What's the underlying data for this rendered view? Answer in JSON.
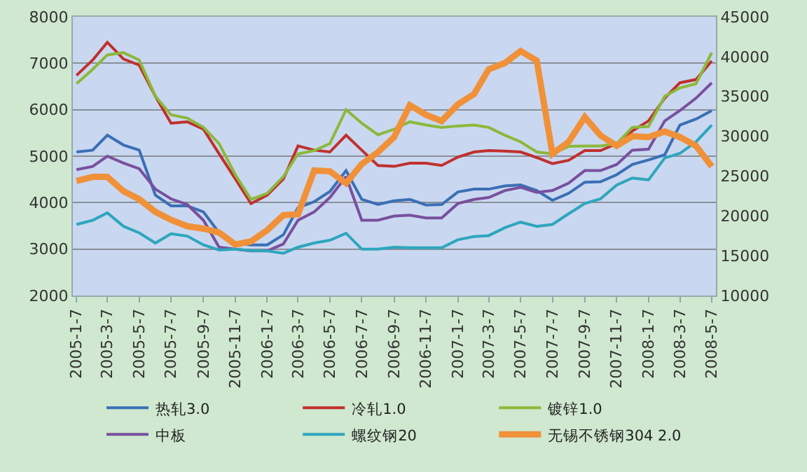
{
  "chart_data": {
    "type": "line",
    "x": [
      "2005-01-07",
      "2005-02-07",
      "2005-03-07",
      "2005-04-07",
      "2005-05-07",
      "2005-06-07",
      "2005-07-07",
      "2005-08-07",
      "2005-09-07",
      "2005-10-07",
      "2005-11-07",
      "2005-12-07",
      "2006-01-07",
      "2006-02-07",
      "2006-03-07",
      "2006-04-07",
      "2006-05-07",
      "2006-06-07",
      "2006-07-07",
      "2006-08-07",
      "2006-09-07",
      "2006-10-07",
      "2006-11-07",
      "2006-12-07",
      "2007-01-07",
      "2007-02-07",
      "2007-03-07",
      "2007-04-07",
      "2007-05-07",
      "2007-06-07",
      "2007-07-07",
      "2007-08-07",
      "2007-09-07",
      "2007-10-07",
      "2007-11-07",
      "2007-12-07",
      "2008-01-07",
      "2008-02-07",
      "2008-03-07",
      "2008-04-07",
      "2008-05-07"
    ],
    "series": [
      {
        "name": "热轧3.0",
        "color": "#3b6fb5",
        "values": [
          5090,
          5130,
          5450,
          5240,
          5130,
          4160,
          3930,
          3930,
          3800,
          3350,
          3130,
          3090,
          3090,
          3310,
          3890,
          4020,
          4240,
          4690,
          4070,
          3960,
          4040,
          4070,
          3950,
          3960,
          4230,
          4290,
          4290,
          4360,
          4380,
          4260,
          4050,
          4200,
          4440,
          4450,
          4600,
          4820,
          4920,
          5030,
          5670,
          5800,
          5980
        ]
      },
      {
        "name": "冷轧1.0",
        "color": "#c0302e",
        "values": [
          6740,
          7070,
          7450,
          7090,
          6960,
          6290,
          5710,
          5740,
          5580,
          5050,
          4510,
          3980,
          4160,
          4510,
          5220,
          5130,
          5090,
          5450,
          5130,
          4800,
          4780,
          4850,
          4850,
          4800,
          4980,
          5090,
          5120,
          5110,
          5090,
          4970,
          4840,
          4910,
          5120,
          5120,
          5270,
          5540,
          5760,
          6250,
          6580,
          6650,
          7050
        ]
      },
      {
        "name": "镀锌1.0",
        "color": "#8cb83a",
        "values": [
          6560,
          6870,
          7180,
          7230,
          7070,
          6290,
          5890,
          5820,
          5620,
          5270,
          4600,
          4070,
          4200,
          4560,
          5050,
          5120,
          5270,
          6000,
          5710,
          5460,
          5580,
          5740,
          5670,
          5620,
          5650,
          5670,
          5620,
          5450,
          5310,
          5090,
          5050,
          5210,
          5220,
          5220,
          5270,
          5620,
          5640,
          6290,
          6470,
          6560,
          7230
        ]
      },
      {
        "name": "中板",
        "color": "#7a4f9e",
        "values": [
          4710,
          4780,
          5000,
          4850,
          4730,
          4290,
          4080,
          3960,
          3620,
          3040,
          3000,
          2960,
          2960,
          3110,
          3620,
          3800,
          4110,
          4560,
          3620,
          3620,
          3710,
          3730,
          3670,
          3670,
          3980,
          4070,
          4110,
          4260,
          4330,
          4220,
          4260,
          4420,
          4690,
          4690,
          4820,
          5130,
          5150,
          5760,
          5980,
          6250,
          6580
        ]
      },
      {
        "name": "螺纹钢20",
        "color": "#2ea6bd",
        "values": [
          3530,
          3620,
          3780,
          3490,
          3350,
          3130,
          3330,
          3280,
          3090,
          2980,
          3000,
          2970,
          2960,
          2910,
          3040,
          3130,
          3190,
          3340,
          3000,
          3000,
          3040,
          3030,
          3030,
          3030,
          3200,
          3270,
          3290,
          3460,
          3580,
          3490,
          3530,
          3760,
          3980,
          4080,
          4380,
          4530,
          4490,
          4960,
          5060,
          5310,
          5670
        ]
      },
      {
        "name": "无锡不锈钢304 2.0",
        "color": "#f0913a",
        "axis": "y2",
        "values": [
          24400,
          24900,
          24900,
          23100,
          22100,
          20500,
          19500,
          18700,
          18400,
          17900,
          16400,
          16800,
          18200,
          20100,
          20200,
          25700,
          25600,
          24100,
          26500,
          28000,
          29900,
          33900,
          32700,
          31900,
          34000,
          35300,
          38400,
          39200,
          40700,
          39500,
          27800,
          29300,
          32400,
          30100,
          28800,
          30000,
          29900,
          30600,
          29900,
          28800,
          26200
        ]
      }
    ],
    "xlim": [
      "2004-12-31",
      "2008-05-15"
    ],
    "xticks": [
      {
        "value": "2005-01-07",
        "label": "2005-1-7"
      },
      {
        "value": "2005-03-07",
        "label": "2005-3-7"
      },
      {
        "value": "2005-05-07",
        "label": "2005-5-7"
      },
      {
        "value": "2005-07-07",
        "label": "2005-7-7"
      },
      {
        "value": "2005-09-07",
        "label": "2005-9-7"
      },
      {
        "value": "2005-11-07",
        "label": "2005-11-7"
      },
      {
        "value": "2006-01-07",
        "label": "2006-1-7"
      },
      {
        "value": "2006-03-07",
        "label": "2006-3-7"
      },
      {
        "value": "2006-05-07",
        "label": "2006-5-7"
      },
      {
        "value": "2006-07-07",
        "label": "2006-7-7"
      },
      {
        "value": "2006-09-07",
        "label": "2006-9-7"
      },
      {
        "value": "2006-11-07",
        "label": "2006-11-7"
      },
      {
        "value": "2007-01-07",
        "label": "2007-1-7"
      },
      {
        "value": "2007-03-07",
        "label": "2007-3-7"
      },
      {
        "value": "2007-05-07",
        "label": "2007-5-7"
      },
      {
        "value": "2007-07-07",
        "label": "2007-7-7"
      },
      {
        "value": "2007-09-07",
        "label": "2007-9-7"
      },
      {
        "value": "2007-11-07",
        "label": "2007-11-7"
      },
      {
        "value": "2008-01-07",
        "label": "2008-1-7"
      },
      {
        "value": "2008-03-07",
        "label": "2008-3-7"
      },
      {
        "value": "2008-05-07",
        "label": "2008-5-7"
      }
    ],
    "ylim": [
      2000,
      8000
    ],
    "yticks": [
      2000,
      3000,
      4000,
      5000,
      6000,
      7000,
      8000
    ],
    "y2lim": [
      10000,
      45000
    ],
    "y2ticks": [
      10000,
      15000,
      20000,
      25000,
      30000,
      35000,
      40000,
      45000
    ],
    "grid": "y",
    "legend": "bottom",
    "marker": "none",
    "line_style": "solid"
  }
}
